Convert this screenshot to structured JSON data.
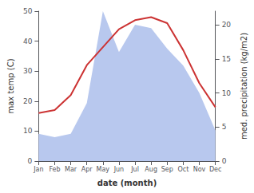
{
  "chart_data": {
    "type": "line",
    "xlabel": "date (month)",
    "ylabel": "max temp (C)",
    "y2label": "med. precipitation (kg/m2)",
    "categories": [
      "Jan",
      "Feb",
      "Mar",
      "Apr",
      "May",
      "Jun",
      "Jul",
      "Aug",
      "Sep",
      "Oct",
      "Nov",
      "Dec"
    ],
    "series": [
      {
        "type": "area",
        "color": "#b8c8ee",
        "axis": "y2",
        "values": [
          4,
          3.5,
          4,
          8.5,
          22,
          16,
          20,
          19.5,
          16.5,
          14,
          10,
          4.5
        ]
      },
      {
        "type": "line",
        "color": "#cc3333",
        "values": [
          16,
          17,
          22,
          32,
          38,
          44,
          47,
          48,
          46,
          37,
          26,
          18
        ]
      }
    ],
    "ylim": [
      0,
      50
    ],
    "yticks": [
      0,
      10,
      20,
      30,
      40,
      50
    ],
    "y2lim": [
      0,
      22
    ],
    "y2ticks": [
      0,
      5,
      10,
      15,
      20
    ],
    "grid": false
  }
}
